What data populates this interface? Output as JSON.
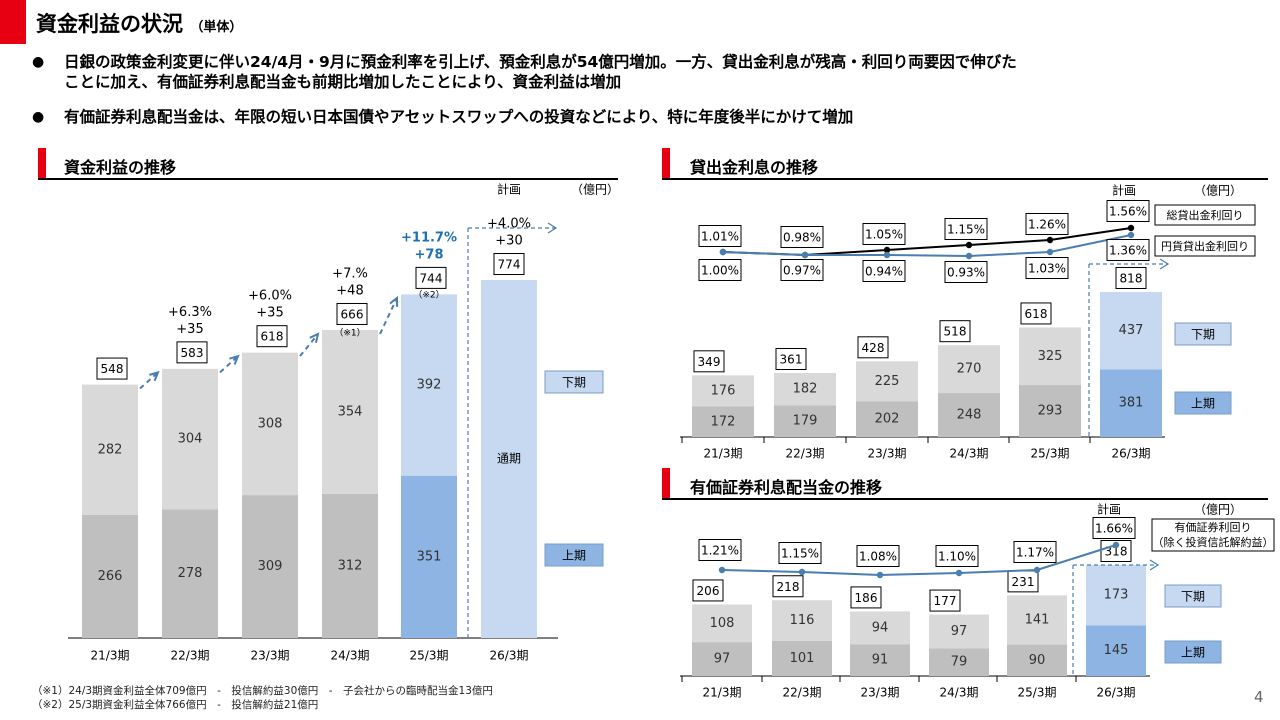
{
  "page": {
    "title": "資金利益の状況",
    "title_sub": "（単体）",
    "bullets": [
      {
        "line1": "日銀の政策金利変更に伴い24/4月・9月に預金利率を引上げ、預金利息が54億円増加。一方、貸出金利息が残高・利回り両要因で伸びた",
        "line2": "ことに加え、有価証券利息配当金も前期比増加したことにより、資金利益は増加"
      },
      {
        "line1": "有価証券利息配当金は、年限の短い日本国債やアセットスワップへの投資などにより、特に年度後半にかけて増加",
        "line2": ""
      }
    ],
    "bullet_mark": "●",
    "footnotes": [
      "（※1）24/3期資金利益全体709億円　-　投信解約益30億円　-　子会社からの臨時配当金13億円",
      "（※2）25/3期資金利益全体766億円　-　投信解約益21億円"
    ],
    "page_number": "4"
  },
  "colors": {
    "accent_red": "#e60012",
    "gray_dark": "#bfbfbf",
    "gray_light": "#d9d9d9",
    "blue_dark": "#8eb4e3",
    "blue_light": "#c6d9f1",
    "growth_blue": "#1f6fb5",
    "line_blue": "#4a7eb0",
    "arrow_blue": "#4a7eb0"
  },
  "chart_data": [
    {
      "id": "left",
      "type": "bar",
      "title": "資金利益の推移",
      "unit": "（億円）",
      "plan_label": "計画",
      "categories": [
        "21/3期",
        "22/3期",
        "23/3期",
        "24/3期",
        "25/3期",
        "26/3期"
      ],
      "series": [
        {
          "name": "上期",
          "values": [
            266,
            278,
            309,
            312,
            351,
            null
          ]
        },
        {
          "name": "下期",
          "values": [
            282,
            304,
            308,
            354,
            392,
            null
          ]
        }
      ],
      "fullyear_values": [
        null,
        null,
        null,
        null,
        null,
        774
      ],
      "fullyear_label": "通期",
      "totals": [
        "548",
        "583",
        "618",
        "666",
        "744",
        "774"
      ],
      "total_notes": [
        "",
        "",
        "",
        "（※1）",
        "（※2）",
        ""
      ],
      "growth": [
        {
          "pct": "",
          "abs": ""
        },
        {
          "pct": "+6.3%",
          "abs": "+35"
        },
        {
          "pct": "+6.0%",
          "abs": "+35"
        },
        {
          "pct": "+7.%",
          "abs": "+48"
        },
        {
          "pct": "+11.7%",
          "abs": "+78"
        },
        {
          "pct": "+4.0%",
          "abs": "+30"
        }
      ],
      "legend": {
        "lower": "上期",
        "upper": "下期"
      },
      "ylim": [
        0,
        800
      ]
    },
    {
      "id": "loan",
      "type": "bar",
      "title": "貸出金利息の推移",
      "unit": "（億円）",
      "plan_label": "計画",
      "categories": [
        "21/3期",
        "22/3期",
        "23/3期",
        "24/3期",
        "25/3期",
        "26/3期"
      ],
      "series": [
        {
          "name": "上期",
          "values": [
            172,
            179,
            202,
            248,
            293,
            381
          ]
        },
        {
          "name": "下期",
          "values": [
            176,
            182,
            225,
            270,
            325,
            437
          ]
        }
      ],
      "totals": [
        "349",
        "361",
        "428",
        "518",
        "618",
        "818"
      ],
      "lines": [
        {
          "name": "総貸出金利回り",
          "labels": [
            "1.01%",
            "0.98%",
            "1.05%",
            "1.15%",
            "1.26%",
            "1.56%"
          ],
          "values": [
            1.01,
            0.98,
            1.05,
            1.15,
            1.26,
            1.56
          ]
        },
        {
          "name": "円貨貸出金利回り",
          "labels": [
            "1.00%",
            "0.97%",
            "0.94%",
            "0.93%",
            "1.03%",
            "1.36%"
          ],
          "values": [
            1.0,
            0.97,
            0.94,
            0.93,
            1.03,
            1.36
          ]
        }
      ],
      "legend": {
        "lower": "上期",
        "upper": "下期"
      },
      "ylim": [
        0,
        900
      ]
    },
    {
      "id": "securities",
      "type": "bar",
      "title": "有価証券利息配当金の推移",
      "unit": "（億円）",
      "plan_label": "計画",
      "categories": [
        "21/3期",
        "22/3期",
        "23/3期",
        "24/3期",
        "25/3期",
        "26/3期"
      ],
      "series": [
        {
          "name": "上期",
          "values": [
            97,
            101,
            91,
            79,
            90,
            145
          ]
        },
        {
          "name": "下期",
          "values": [
            108,
            116,
            94,
            97,
            141,
            173
          ]
        }
      ],
      "totals": [
        "206",
        "218",
        "186",
        "177",
        "231",
        "318"
      ],
      "lines": [
        {
          "name": "有価証券利回り（除く投資信託解約益）",
          "name_line1": "有価証券利回り",
          "name_line2": "（除く投資信託解約益）",
          "labels": [
            "1.21%",
            "1.15%",
            "1.08%",
            "1.10%",
            "1.17%",
            "1.66%"
          ],
          "values": [
            1.21,
            1.15,
            1.08,
            1.1,
            1.17,
            1.66
          ]
        }
      ],
      "legend": {
        "lower": "上期",
        "upper": "下期"
      },
      "ylim": [
        0,
        330
      ]
    }
  ]
}
